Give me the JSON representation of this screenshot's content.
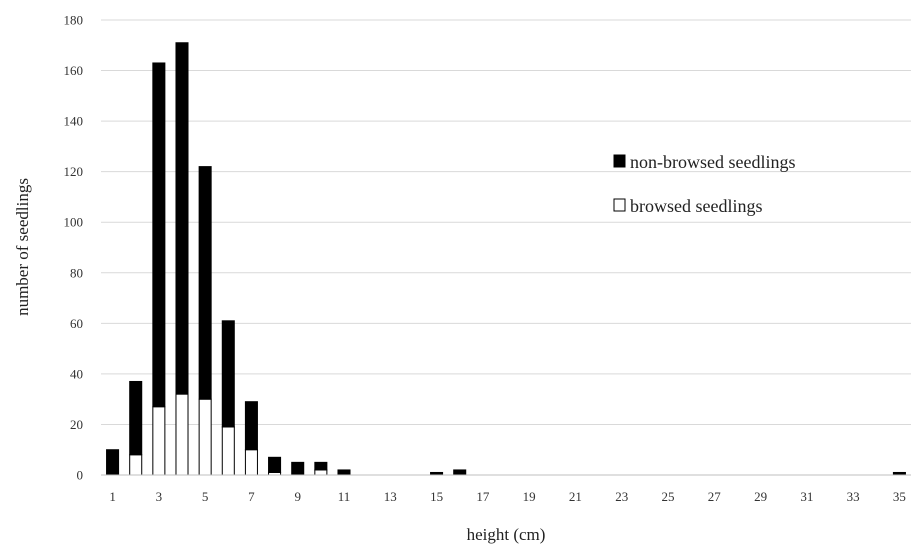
{
  "chart_data": {
    "type": "bar",
    "stacked": true,
    "xlabel": "height  (cm)",
    "ylabel": "number  of seedlings",
    "ylim": [
      0,
      180
    ],
    "yticks": [
      0,
      20,
      40,
      60,
      80,
      100,
      120,
      140,
      160,
      180
    ],
    "x_tick_labels": [
      "1",
      "3",
      "5",
      "7",
      "9",
      "11",
      "13",
      "15",
      "17",
      "19",
      "21",
      "23",
      "25",
      "27",
      "29",
      "31",
      "33",
      "35"
    ],
    "categories": [
      "1",
      "2",
      "3",
      "4",
      "5",
      "6",
      "7",
      "8",
      "9",
      "10",
      "11",
      "12",
      "13",
      "14",
      "15",
      "16",
      "17",
      "18",
      "19",
      "20",
      "21",
      "22",
      "23",
      "24",
      "25",
      "26",
      "27",
      "28",
      "29",
      "30",
      "31",
      "32",
      "33",
      "34",
      "35"
    ],
    "grid": true,
    "legend_position": "right",
    "series": [
      {
        "name": "browsed seedlings",
        "color": "#ffffff",
        "values": [
          0,
          8,
          27,
          32,
          30,
          19,
          10,
          1,
          0,
          2,
          0,
          0,
          0,
          0,
          0,
          0,
          0,
          0,
          0,
          0,
          0,
          0,
          0,
          0,
          0,
          0,
          0,
          0,
          0,
          0,
          0,
          0,
          0,
          0,
          0
        ]
      },
      {
        "name": "non-browsed seedlings",
        "color": "#000000",
        "values": [
          10,
          29,
          136,
          139,
          92,
          42,
          19,
          6,
          5,
          3,
          2,
          0,
          0,
          0,
          1,
          2,
          0,
          0,
          0,
          0,
          0,
          0,
          0,
          0,
          0,
          0,
          0,
          0,
          0,
          0,
          0,
          0,
          0,
          0,
          1
        ]
      }
    ]
  }
}
